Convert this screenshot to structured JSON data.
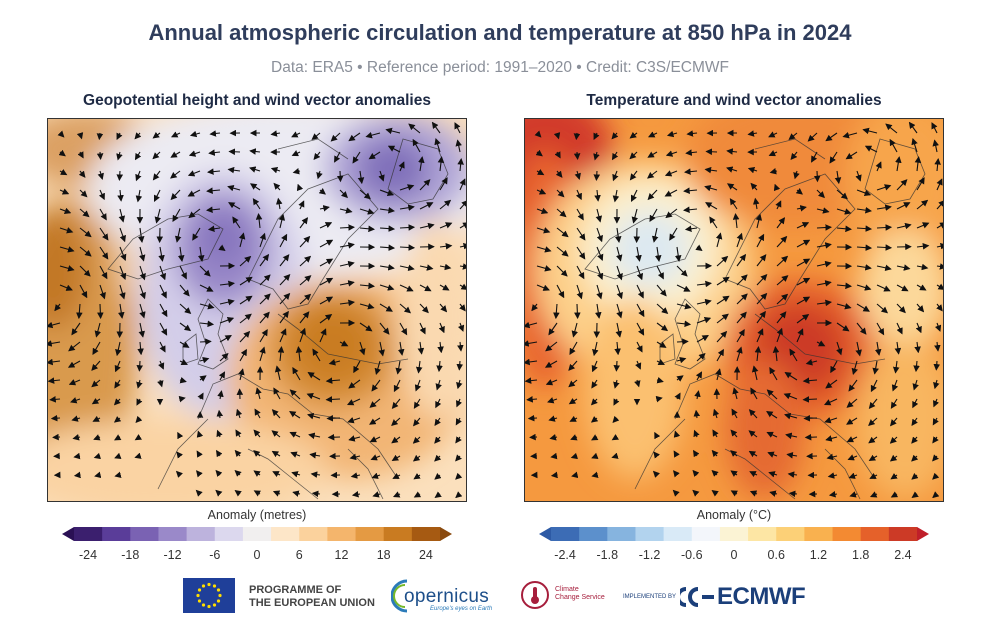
{
  "title": "Annual atmospheric circulation and temperature at 850 hPa in 2024",
  "subtitle": "Data: ERA5 • Reference period: 1991–2020 • Credit: C3S/ECMWF",
  "panels": [
    {
      "title": "Geopotential height and wind vector anomalies",
      "colorbar": {
        "label": "Anomaly (metres)",
        "ticks": [
          "-24",
          "-18",
          "-12",
          "-6",
          "0",
          "6",
          "12",
          "18",
          "24"
        ],
        "colors": [
          "#3b1f6e",
          "#5a3d99",
          "#7a62b3",
          "#9a89c9",
          "#bdb3dd",
          "#dcd8ee",
          "#f1efef",
          "#fde6c8",
          "#fbd29d",
          "#f4b56c",
          "#e49a43",
          "#c97b21",
          "#a65a12"
        ],
        "under": "#2a1054",
        "over": "#8a4a0e"
      }
    },
    {
      "title": "Temperature and wind vector anomalies",
      "colorbar": {
        "label": "Anomaly (°C)",
        "ticks": [
          "-2.4",
          "-1.8",
          "-1.2",
          "-0.6",
          "0",
          "0.6",
          "1.2",
          "1.8",
          "2.4"
        ],
        "colors": [
          "#3c6cb5",
          "#5c90cc",
          "#86b4df",
          "#b2d3ee",
          "#d9eaf7",
          "#f3f6fb",
          "#fbf3d4",
          "#fde6a4",
          "#fcd077",
          "#f9b14f",
          "#f38a32",
          "#e5612a",
          "#cc3a26"
        ],
        "under": "#2d5aa5",
        "over": "#c01f2a"
      }
    }
  ],
  "logos": {
    "eu_line1": "PROGRAMME OF",
    "eu_line2": "THE EUROPEAN UNION",
    "copernicus": "opernicus",
    "copernicus_tagline": "Europe's eyes on Earth",
    "c3s_line1": "Climate",
    "c3s_line2": "Change Service",
    "implemented": "IMPLEMENTED BY",
    "ecmwf": "ECMWF"
  }
}
